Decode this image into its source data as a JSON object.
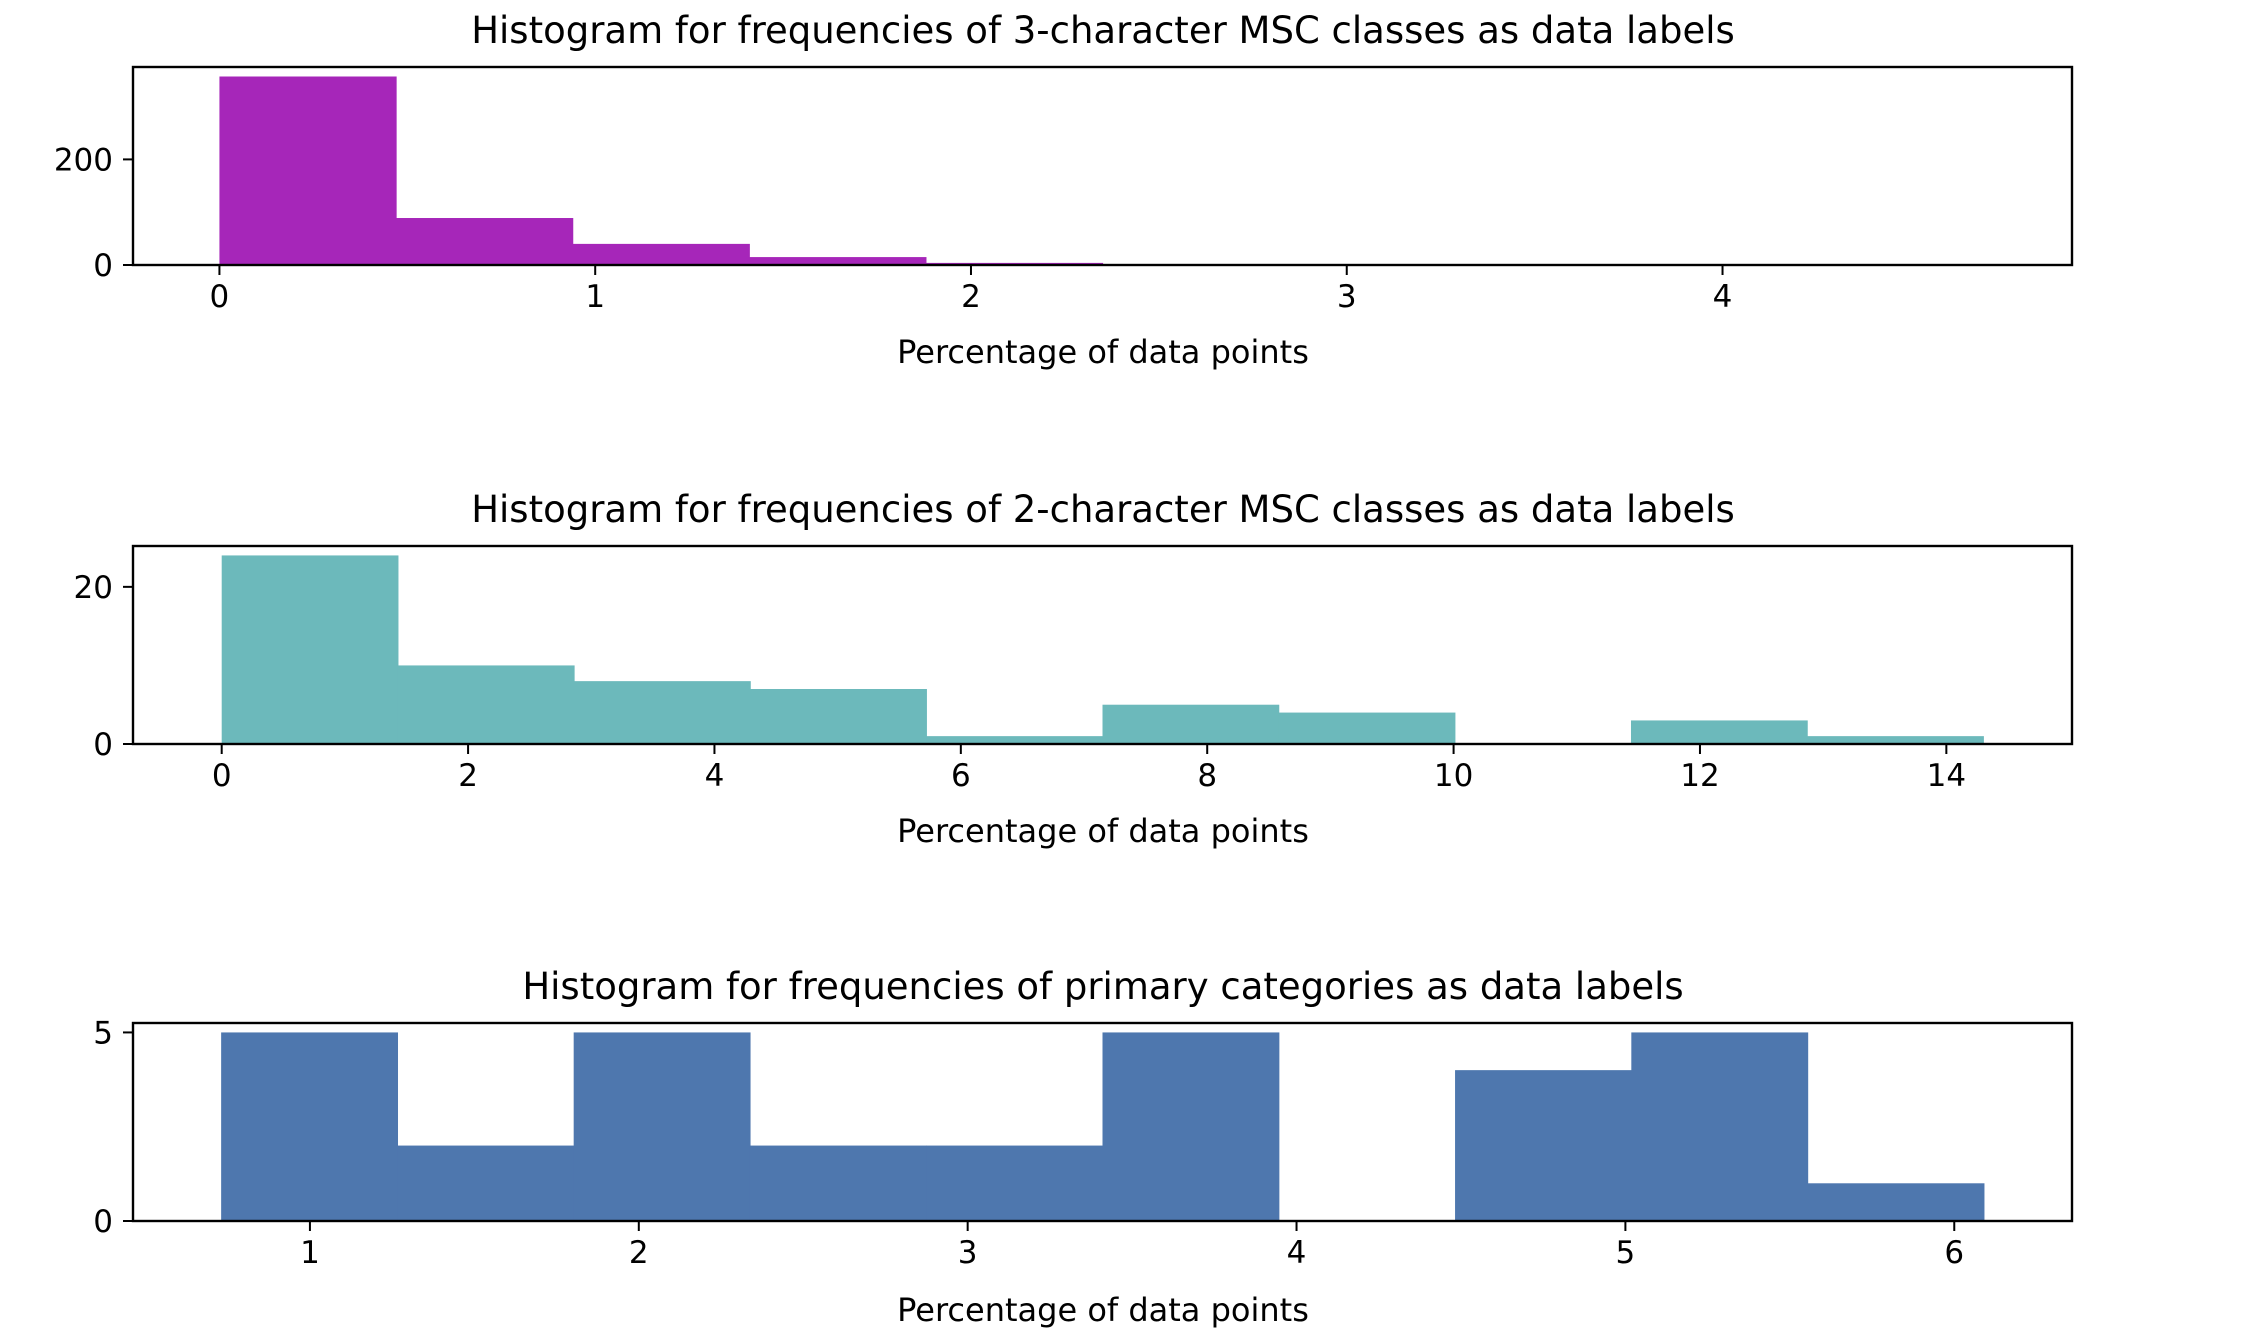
{
  "chart_data": [
    {
      "type": "bar",
      "title": "Histogram for frequencies of 3-character MSC classes as data labels",
      "xlabel": "Percentage of data points",
      "ylabel": "",
      "color": "#a626b9",
      "bin_edges": [
        0,
        0.47,
        0.94,
        1.41,
        1.88,
        2.35,
        2.82,
        3.29,
        3.76,
        4.23,
        4.7
      ],
      "values": [
        357,
        89,
        40,
        15,
        4,
        0,
        0,
        0,
        0,
        1
      ],
      "xlim": [
        -0.23,
        4.93
      ],
      "ylim": [
        0,
        375
      ],
      "xticks": [
        0,
        1,
        2,
        3,
        4
      ],
      "xtick_labels": [
        "0",
        "1",
        "2",
        "3",
        "4"
      ],
      "yticks": [
        0,
        200
      ],
      "ytick_labels": [
        "0",
        "200"
      ]
    },
    {
      "type": "bar",
      "title": "Histogram for frequencies of 2-character MSC classes as data labels",
      "xlabel": "Percentage of data points",
      "ylabel": "",
      "color": "#6cb9bb",
      "bin_edges": [
        0,
        1.43,
        2.86,
        4.29,
        5.72,
        7.15,
        8.58,
        10.01,
        11.44,
        12.87,
        14.3
      ],
      "values": [
        24,
        10,
        8,
        7,
        1,
        5,
        4,
        0,
        3,
        1
      ],
      "xlim": [
        -0.72,
        15.02
      ],
      "ylim": [
        0,
        25.2
      ],
      "xticks": [
        0,
        2,
        4,
        6,
        8,
        10,
        12,
        14
      ],
      "xtick_labels": [
        "0",
        "2",
        "4",
        "6",
        "8",
        "10",
        "12",
        "14"
      ],
      "yticks": [
        0,
        20
      ],
      "ytick_labels": [
        "0",
        "20"
      ]
    },
    {
      "type": "bar",
      "title": "Histogram for frequencies of primary categories as data labels",
      "xlabel": "Percentage of data points",
      "ylabel": "",
      "color": "#4e77ae",
      "bin_edges": [
        0.73,
        1.266,
        1.802,
        2.338,
        2.874,
        3.41,
        3.946,
        4.482,
        5.018,
        5.554,
        6.09
      ],
      "values": [
        5,
        2,
        5,
        2,
        2,
        5,
        0,
        4,
        5,
        1
      ],
      "xlim": [
        0.462,
        6.358
      ],
      "ylim": [
        0,
        5.25
      ],
      "xticks": [
        1,
        2,
        3,
        4,
        5,
        6
      ],
      "xtick_labels": [
        "1",
        "2",
        "3",
        "4",
        "5",
        "6"
      ],
      "yticks": [
        0,
        5
      ],
      "ytick_labels": [
        "0",
        "5"
      ]
    }
  ]
}
